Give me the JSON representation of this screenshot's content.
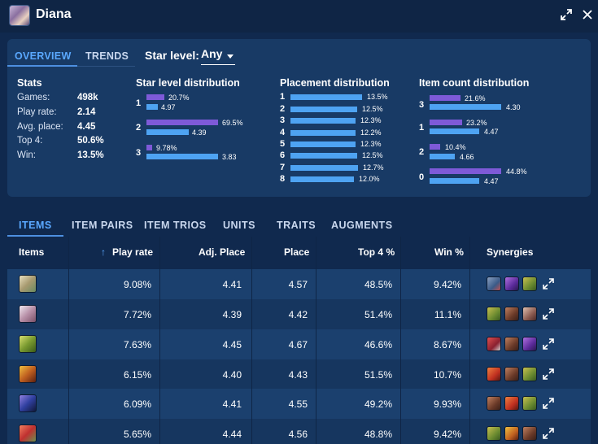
{
  "window": {
    "champion": "Diana"
  },
  "overview_tabs": [
    {
      "label": "OVERVIEW"
    },
    {
      "label": "TRENDS"
    }
  ],
  "star_filter": {
    "label": "Star level:",
    "value": "Any"
  },
  "stats": {
    "title": "Stats",
    "rows": [
      {
        "label": "Games:",
        "value": "498k"
      },
      {
        "label": "Play rate:",
        "value": "2.14"
      },
      {
        "label": "Avg. place:",
        "value": "4.45"
      },
      {
        "label": "Top 4:",
        "value": "50.6%"
      },
      {
        "label": "Win:",
        "value": "13.5%"
      }
    ]
  },
  "star_distribution": {
    "title": "Star level distribution",
    "rows": [
      {
        "label": "1",
        "pct": "20.7%",
        "avg": "4.97"
      },
      {
        "label": "2",
        "pct": "69.5%",
        "avg": "4.39"
      },
      {
        "label": "3",
        "pct": "9.78%",
        "avg": "3.83"
      }
    ]
  },
  "placement_distribution": {
    "title": "Placement distribution",
    "rows": [
      {
        "label": "1",
        "pct": "13.5%"
      },
      {
        "label": "2",
        "pct": "12.5%"
      },
      {
        "label": "3",
        "pct": "12.3%"
      },
      {
        "label": "4",
        "pct": "12.2%"
      },
      {
        "label": "5",
        "pct": "12.3%"
      },
      {
        "label": "6",
        "pct": "12.5%"
      },
      {
        "label": "7",
        "pct": "12.7%"
      },
      {
        "label": "8",
        "pct": "12.0%"
      }
    ]
  },
  "item_count_distribution": {
    "title": "Item count distribution",
    "rows": [
      {
        "label": "3",
        "pct": "21.6%",
        "avg": "4.30"
      },
      {
        "label": "1",
        "pct": "23.2%",
        "avg": "4.47"
      },
      {
        "label": "2",
        "pct": "10.4%",
        "avg": "4.66"
      },
      {
        "label": "0",
        "pct": "44.8%",
        "avg": "4.47"
      }
    ]
  },
  "main_tabs": [
    {
      "label": "ITEMS"
    },
    {
      "label": "ITEM PAIRS"
    },
    {
      "label": "ITEM TRIOS"
    },
    {
      "label": "UNITS"
    },
    {
      "label": "TRAITS"
    },
    {
      "label": "AUGMENTS"
    }
  ],
  "table": {
    "headers": {
      "items": "Items",
      "sort_arrow": "↑",
      "play_rate": "Play rate",
      "adj_place": "Adj. Place",
      "place": "Place",
      "top4": "Top 4 %",
      "win": "Win %",
      "synergies": "Synergies"
    },
    "rows": [
      {
        "icon": "item-icon-1",
        "play_rate": "9.08%",
        "adj_place": "4.41",
        "place": "4.57",
        "top4": "48.5%",
        "win": "9.42%"
      },
      {
        "icon": "item-icon-2",
        "play_rate": "7.72%",
        "adj_place": "4.39",
        "place": "4.42",
        "top4": "51.4%",
        "win": "11.1%"
      },
      {
        "icon": "item-icon-3",
        "play_rate": "7.63%",
        "adj_place": "4.45",
        "place": "4.67",
        "top4": "46.6%",
        "win": "8.67%"
      },
      {
        "icon": "item-icon-4",
        "play_rate": "6.15%",
        "adj_place": "4.40",
        "place": "4.43",
        "top4": "51.5%",
        "win": "10.7%"
      },
      {
        "icon": "item-icon-5",
        "play_rate": "6.09%",
        "adj_place": "4.41",
        "place": "4.55",
        "top4": "49.2%",
        "win": "9.93%"
      },
      {
        "icon": "item-icon-6",
        "play_rate": "5.65%",
        "adj_place": "4.44",
        "place": "4.56",
        "top4": "48.8%",
        "win": "9.42%"
      }
    ]
  },
  "colors": {
    "accent": "#5aa8ff",
    "bar_purple": "#7e5ad8",
    "bar_blue": "#4ea3f2",
    "background": "#10294e"
  }
}
